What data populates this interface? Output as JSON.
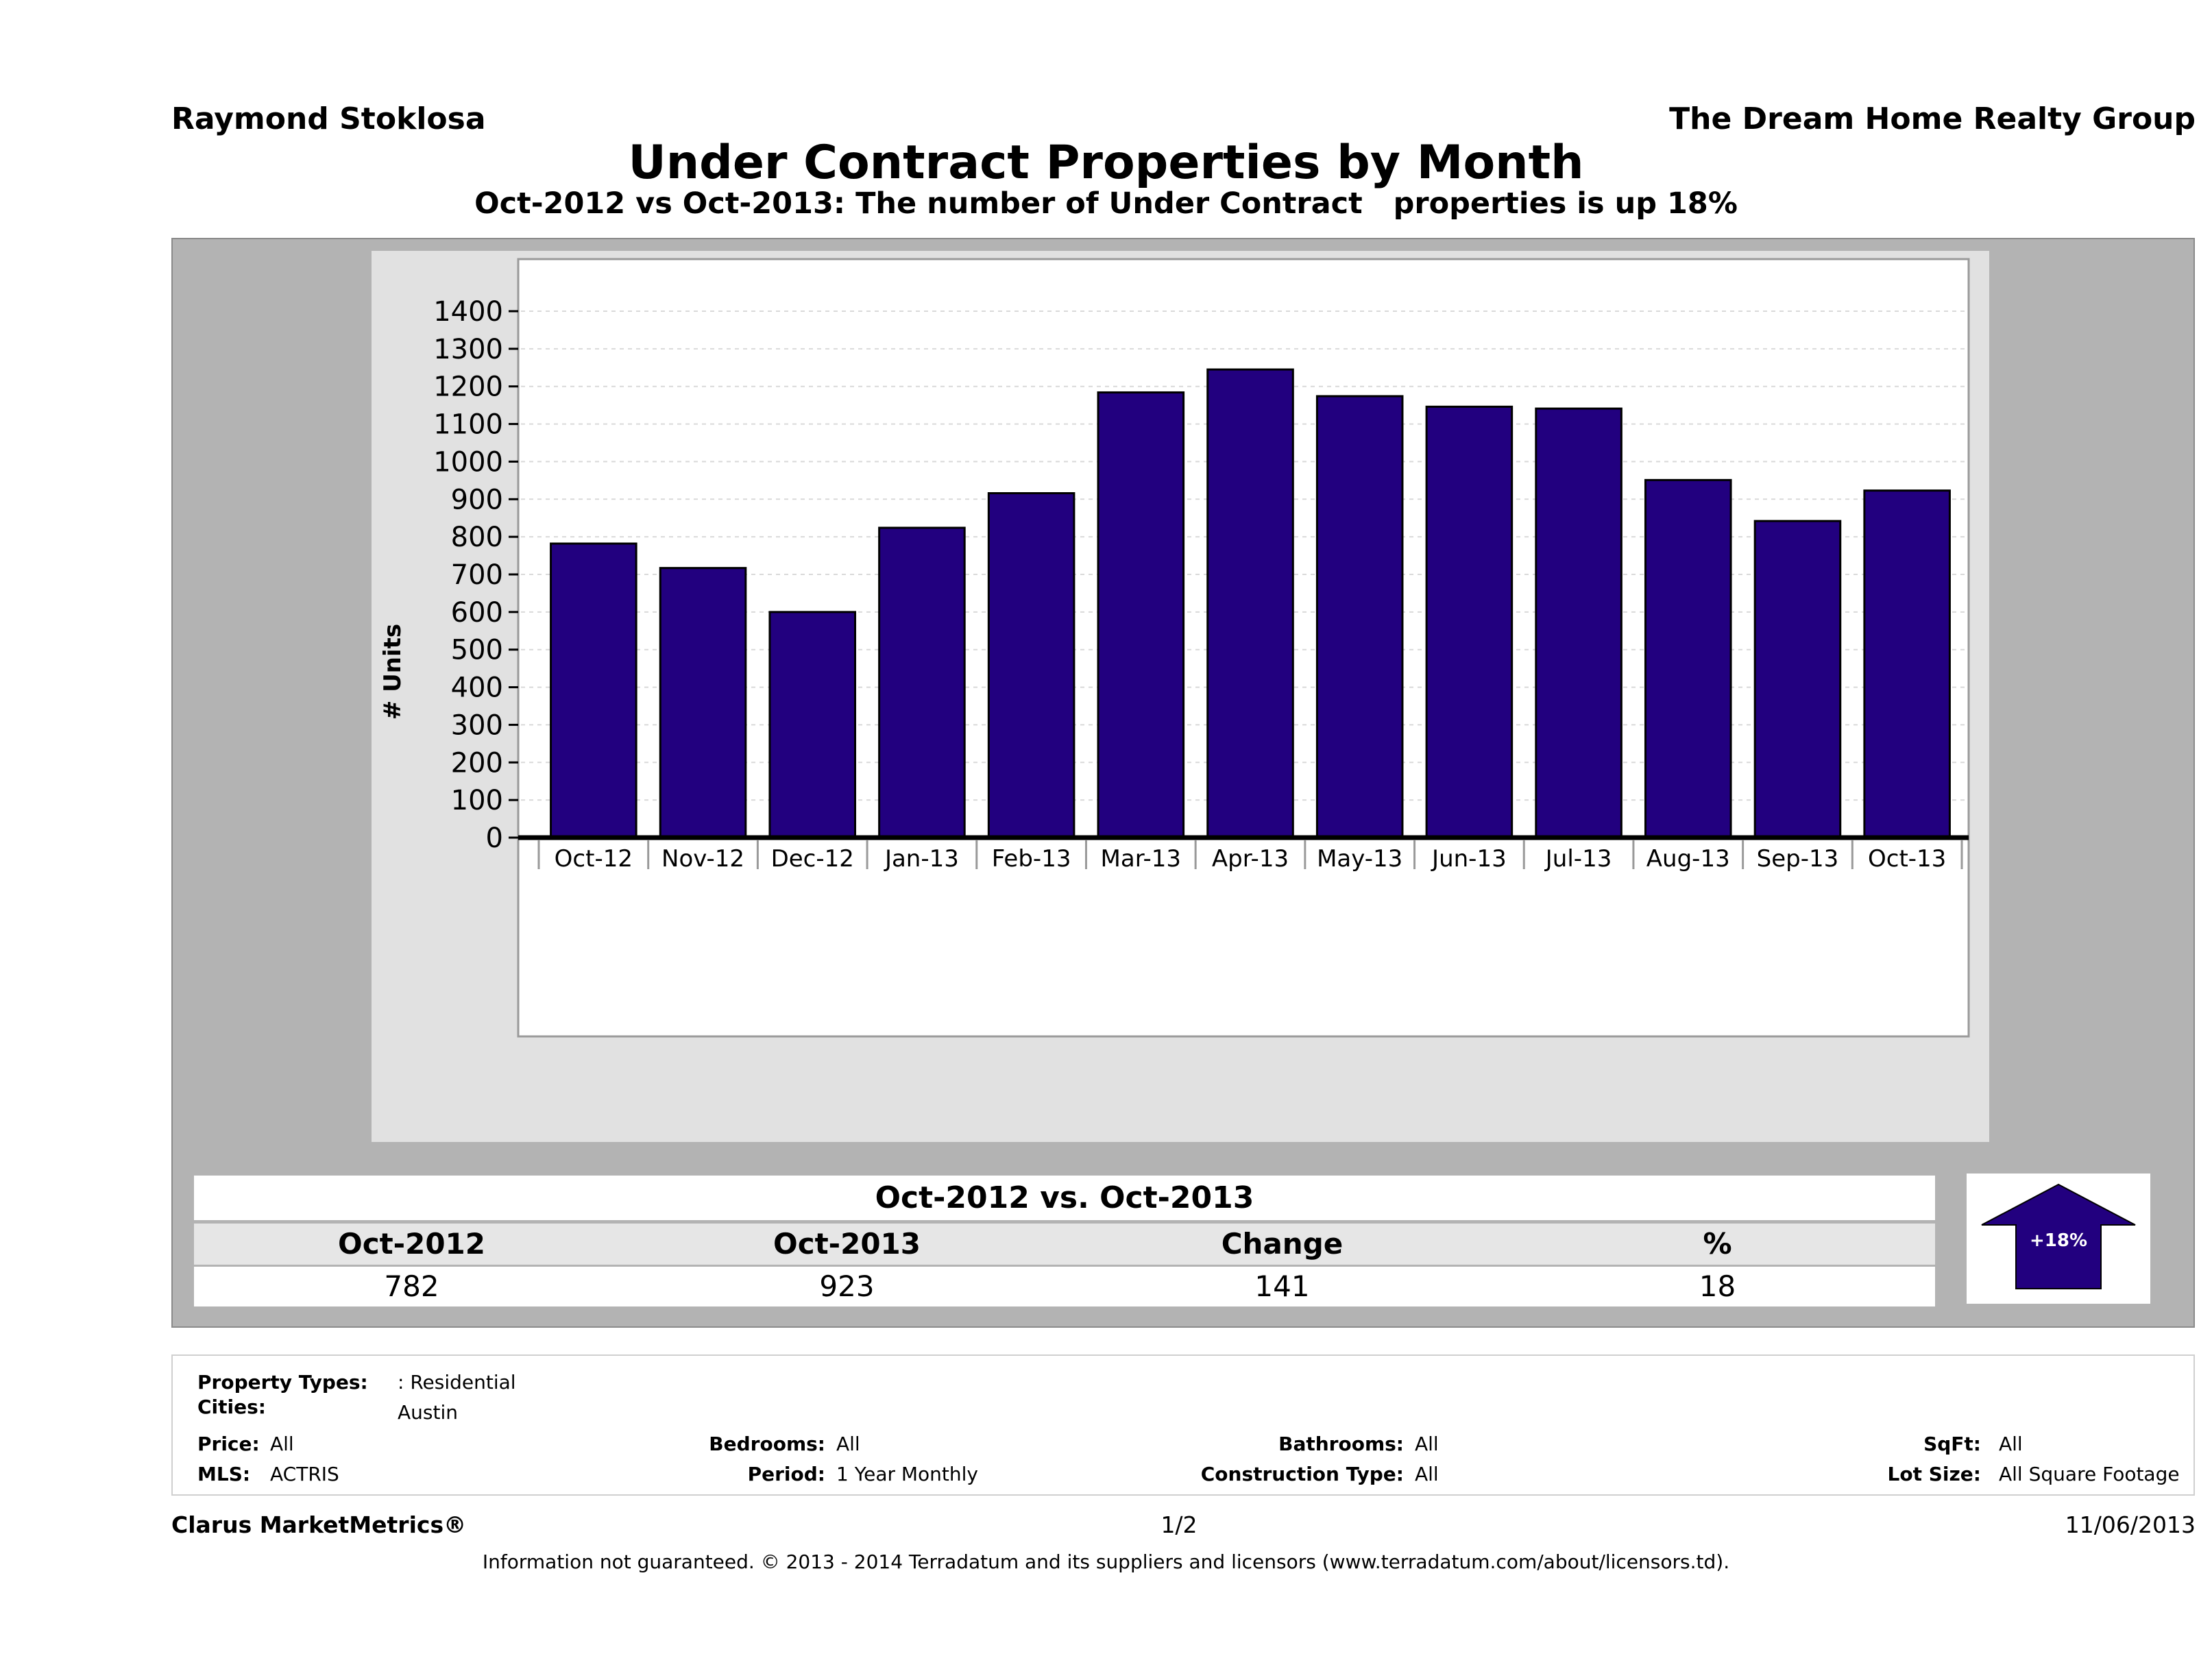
{
  "header": {
    "agent": "Raymond Stoklosa",
    "company": "The Dream Home Realty Group",
    "title": "Under Contract Properties by Month",
    "subtitle": "Oct-2012 vs Oct-2013: The number of Under Contract   properties is up 18%"
  },
  "chart_data": {
    "type": "bar",
    "ylabel": "# Units",
    "xlabel": "",
    "ylim": [
      0,
      1400
    ],
    "yticks": [
      0,
      100,
      200,
      300,
      400,
      500,
      600,
      700,
      800,
      900,
      1000,
      1100,
      1200,
      1300,
      1400
    ],
    "grid": true,
    "categories": [
      "Oct-12",
      "Nov-12",
      "Dec-12",
      "Jan-13",
      "Feb-13",
      "Mar-13",
      "Apr-13",
      "May-13",
      "Jun-13",
      "Jul-13",
      "Aug-13",
      "Sep-13",
      "Oct-13"
    ],
    "values": [
      782,
      717,
      600,
      824,
      916,
      1184,
      1245,
      1174,
      1146,
      1141,
      951,
      842,
      923
    ],
    "colors": {
      "bar": "#22007f",
      "bar_edge": "#000000",
      "plot_bg": "#ffffff",
      "panel_bg": "#e1e1e1",
      "grid": "#d9d9d9"
    }
  },
  "stats": {
    "title": "Oct-2012 vs. Oct-2013",
    "headers": [
      "Oct-2012",
      "Oct-2013",
      "Change",
      "%"
    ],
    "values": [
      "782",
      "923",
      "141",
      "18"
    ],
    "badge": "+18%",
    "badge_icon": "up-arrow-icon",
    "badge_color": "#22007f"
  },
  "criteria": {
    "property_types_label": "Property Types:",
    "property_types_value": ": Residential",
    "cities_label": "Cities:",
    "cities_value": "Austin",
    "price_label": "Price:",
    "price_value": "All",
    "mls_label": "MLS:",
    "mls_value": "ACTRIS",
    "bedrooms_label": "Bedrooms:",
    "bedrooms_value": "All",
    "period_label": "Period:",
    "period_value": "1 Year Monthly",
    "bathrooms_label": "Bathrooms:",
    "bathrooms_value": "All",
    "construction_label": "Construction Type:",
    "construction_value": "All",
    "sqft_label": "SqFt:",
    "sqft_value": "All",
    "lotsize_label": "Lot Size:",
    "lotsize_value": "All Square Footage"
  },
  "footer": {
    "brand": "Clarus MarketMetrics®",
    "page": "1/2",
    "date": "11/06/2013",
    "disclaimer": "Information not guaranteed. © 2013 - 2014 Terradatum and its suppliers and licensors (www.terradatum.com/about/licensors.td)."
  }
}
